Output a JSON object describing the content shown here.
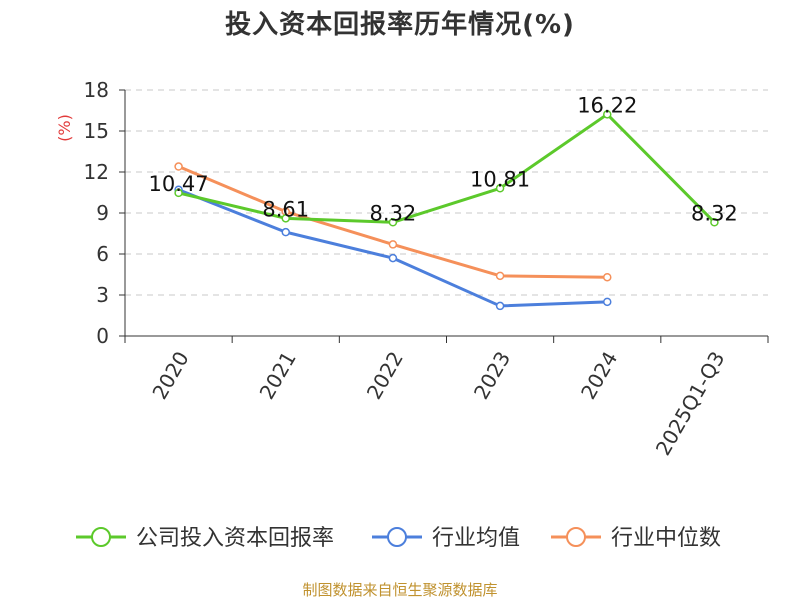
{
  "title": "投入资本回报率历年情况(%)",
  "source": "制图数据来自恒生聚源数据库",
  "chart_data": {
    "type": "line",
    "categories": [
      "2020",
      "2021",
      "2022",
      "2023",
      "2024",
      "2025Q1-Q3"
    ],
    "ylabel": "(%)",
    "ylim": [
      0,
      18
    ],
    "yticks": [
      0,
      3,
      6,
      9,
      12,
      15,
      18
    ],
    "grid": true,
    "legend_position": "bottom",
    "series": [
      {
        "name": "公司投入资本回报率",
        "color": "#5cc92b",
        "values": [
          10.47,
          8.61,
          8.32,
          10.81,
          16.22,
          8.32
        ],
        "labels": [
          "10.47",
          "8.61",
          "8.32",
          "10.81",
          "16.22",
          "8.32"
        ]
      },
      {
        "name": "行业均值",
        "color": "#4c7fdc",
        "values": [
          10.7,
          7.6,
          5.7,
          2.2,
          2.5,
          null
        ]
      },
      {
        "name": "行业中位数",
        "color": "#f5905a",
        "values": [
          12.4,
          9.1,
          6.7,
          4.4,
          4.3,
          null
        ]
      }
    ]
  }
}
